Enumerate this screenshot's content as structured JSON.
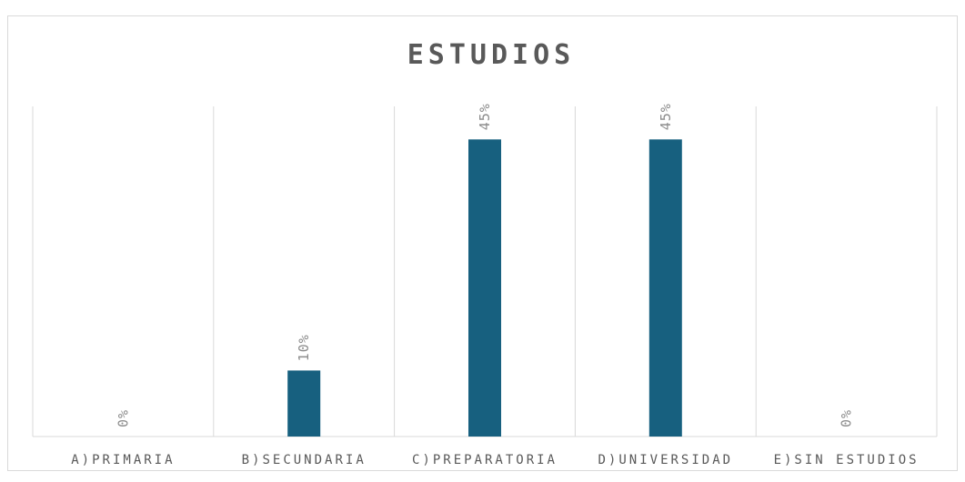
{
  "chart_data": {
    "type": "bar",
    "title": "ESTUDIOS",
    "categories": [
      "A)PRIMARIA",
      "B)SECUNDARIA",
      "C)PREPARATORIA",
      "D)UNIVERSIDAD",
      "E)SIN ESTUDIOS"
    ],
    "values": [
      0,
      10,
      45,
      45,
      0
    ],
    "data_labels": [
      "0%",
      "10%",
      "45%",
      "45%",
      "0%"
    ],
    "ylim": [
      0,
      50
    ],
    "grid": "vertical separators",
    "legend": "none",
    "bar_color": "#17607f"
  }
}
